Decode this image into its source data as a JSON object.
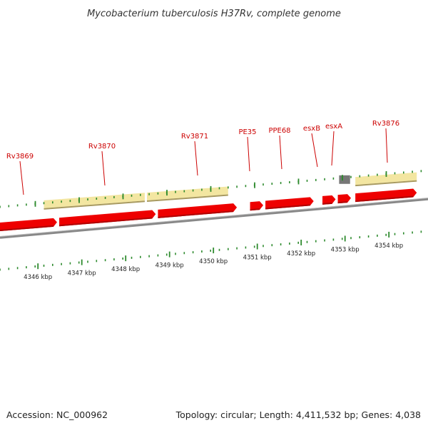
{
  "title": "Mycobacterium tuberculosis H37Rv, complete genome",
  "footer": {
    "accession": "Accession: NC_000962",
    "summary": "Topology: circular; Length: 4,411,532 bp; Genes: 4,038"
  },
  "colors": {
    "gene": "#ee0000",
    "gene_shade": "#b00000",
    "feature": "#f3e6a1",
    "feature_shade": "#a89a60",
    "backbone": "#888888",
    "tick": "#2d8a2d",
    "label": "#cc0000",
    "grey_gene": "#777777"
  },
  "chart_data": {
    "type": "linear-genome-map",
    "units": "kbp",
    "view_range_kbp": [
      4345.2,
      4354.7
    ],
    "ruler_ticks_kbp": [
      4346,
      4347,
      4348,
      4349,
      4350,
      4351,
      4352,
      4353,
      4354
    ],
    "ruler_labels": [
      "4346 kbp",
      "4347 kbp",
      "4348 kbp",
      "4349 kbp",
      "4350 kbp",
      "4351 kbp",
      "4352 kbp",
      "4353 kbp",
      "4354 kbp"
    ],
    "genes": [
      {
        "label": "Rv3869",
        "start_kbp": 4345.2,
        "end_kbp": 4346.5,
        "strand": "+"
      },
      {
        "label": "Rv3870",
        "start_kbp": 4346.55,
        "end_kbp": 4348.75,
        "strand": "+"
      },
      {
        "label": "Rv3871",
        "start_kbp": 4348.8,
        "end_kbp": 4350.6,
        "strand": "+"
      },
      {
        "label": "PE35",
        "start_kbp": 4350.9,
        "end_kbp": 4351.2,
        "strand": "+"
      },
      {
        "label": "PPE68",
        "start_kbp": 4351.25,
        "end_kbp": 4352.35,
        "strand": "+"
      },
      {
        "label": "esxB",
        "start_kbp": 4352.55,
        "end_kbp": 4352.85,
        "strand": "+"
      },
      {
        "label": "esxA",
        "start_kbp": 4352.9,
        "end_kbp": 4353.2,
        "strand": "+"
      },
      {
        "label": "Rv3876",
        "start_kbp": 4353.3,
        "end_kbp": 4354.7,
        "strand": "+"
      }
    ],
    "features": [
      {
        "start_kbp": 4346.2,
        "end_kbp": 4348.5
      },
      {
        "start_kbp": 4348.55,
        "end_kbp": 4350.4
      },
      {
        "start_kbp": 4353.3,
        "end_kbp": 4354.7
      }
    ],
    "grey_genes": [
      {
        "start_kbp": 4352.93,
        "end_kbp": 4353.18
      }
    ]
  }
}
